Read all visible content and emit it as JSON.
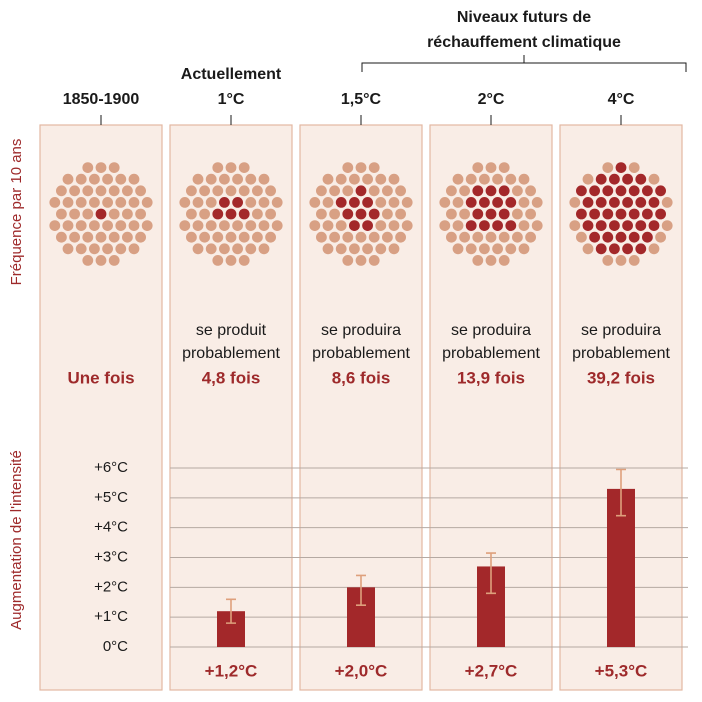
{
  "chart_data": {
    "type": "bar",
    "title": [
      "Niveaux futurs de",
      "réchauffement climatique"
    ],
    "note": "Actuellement",
    "categories": [
      "1850-1900",
      "1°C",
      "1,5°C",
      "2°C",
      "4°C"
    ],
    "frequency_label": "Fréquence par 10 ans",
    "frequency": {
      "values": [
        1,
        4.8,
        8.6,
        13.9,
        39.2
      ],
      "value_labels": [
        "Une fois",
        "4,8 fois",
        "8,6 fois",
        "13,9 fois",
        "39,2 fois"
      ],
      "captions": [
        null,
        [
          "se produit",
          "probablement"
        ],
        [
          "se produira",
          "probablement"
        ],
        [
          "se produira",
          "probablement"
        ],
        [
          "se produira",
          "probablement"
        ]
      ]
    },
    "intensity_label": "Augmentation de l'intensité",
    "intensity": {
      "values": [
        null,
        1.2,
        2.0,
        2.7,
        5.3
      ],
      "low": [
        null,
        0.8,
        1.4,
        1.8,
        4.4
      ],
      "high": [
        null,
        1.6,
        2.4,
        3.15,
        5.95
      ],
      "value_labels": [
        null,
        "+1,2°C",
        "+2,0°C",
        "+2,7°C",
        "+5,3°C"
      ]
    },
    "ylim": [
      0,
      6
    ],
    "yticks": [
      {
        "value": 0,
        "label": "0°C"
      },
      {
        "value": 1,
        "label": "+1°C"
      },
      {
        "value": 2,
        "label": "+2°C"
      },
      {
        "value": 3,
        "label": "+3°C"
      },
      {
        "value": 4,
        "label": "+4°C"
      },
      {
        "value": 5,
        "label": "+5°C"
      },
      {
        "value": 6,
        "label": "+6°C"
      }
    ],
    "grid": true,
    "colors": {
      "bar": "#a3282a",
      "error": "#dea07c",
      "dot": "#d8a084",
      "dot_active": "#a3282a",
      "panel": "#f9ede6",
      "panel_border": "#e3b8a2",
      "accent": "#9e2a2b"
    }
  }
}
